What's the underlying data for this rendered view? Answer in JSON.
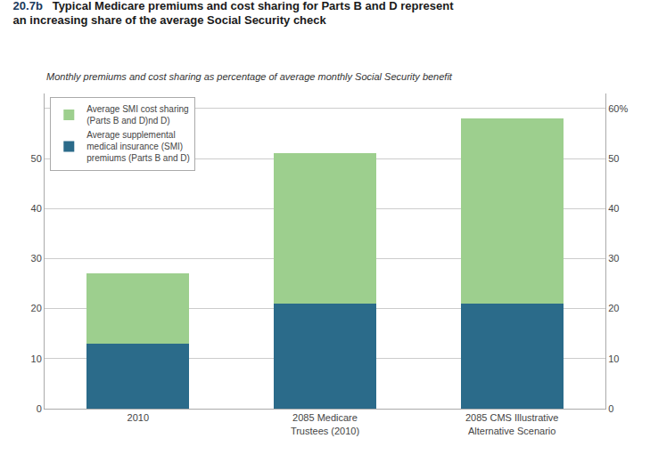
{
  "chart_data": {
    "type": "bar",
    "stacked": true,
    "title": "Typical Medicare premiums and cost sharing for Parts B and D represent\nan increasing share of the average Social Security check",
    "annotations": [
      "20.7b"
    ],
    "subtitle": "Monthly premiums and cost sharing as percentage of average monthly Social Security benefit",
    "categories": [
      "2010",
      "2085 Medicare\nTrustees (2010)",
      "2085 CMS Illustrative\nAlternative Scenario"
    ],
    "series": [
      {
        "name": "Average supplemental\nmedical insurance (SMI)\npremiums (Parts B and D)",
        "color": "#2b6b8a",
        "values": [
          13,
          21,
          21
        ]
      },
      {
        "name": "Average SMI cost sharing\n(Parts B and D)nd D)",
        "color": "#9dcf8e",
        "values": [
          14,
          30,
          37
        ]
      }
    ],
    "ylim": [
      0,
      63
    ],
    "yticks": [
      0,
      10,
      20,
      30,
      40,
      50
    ],
    "y2lim": [
      0,
      63
    ],
    "y2ticks": [
      0,
      10,
      20,
      30,
      40,
      50,
      {
        "value": 60,
        "label": "60%"
      }
    ],
    "grid": true,
    "legend": "upper left"
  }
}
